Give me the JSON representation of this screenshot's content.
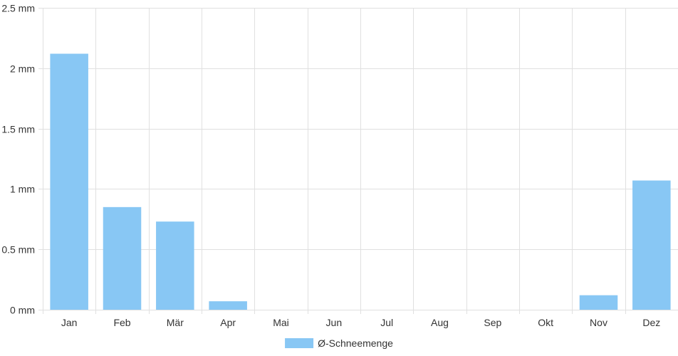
{
  "chart_data": {
    "type": "bar",
    "categories": [
      "Jan",
      "Feb",
      "Mär",
      "Apr",
      "Mai",
      "Jun",
      "Jul",
      "Aug",
      "Sep",
      "Okt",
      "Nov",
      "Dez"
    ],
    "series": [
      {
        "name": "Ø-Schneemenge",
        "values": [
          2.12,
          0.85,
          0.73,
          0.07,
          0,
          0,
          0,
          0,
          0,
          0,
          0.12,
          1.07
        ],
        "color": "#88c7f4"
      }
    ],
    "yticks": [
      "0 mm",
      "0.5 mm",
      "1 mm",
      "1.5 mm",
      "2 mm",
      "2.5 mm"
    ],
    "ylim": [
      0,
      2.5
    ],
    "grid": true,
    "legend_position": "bottom"
  }
}
